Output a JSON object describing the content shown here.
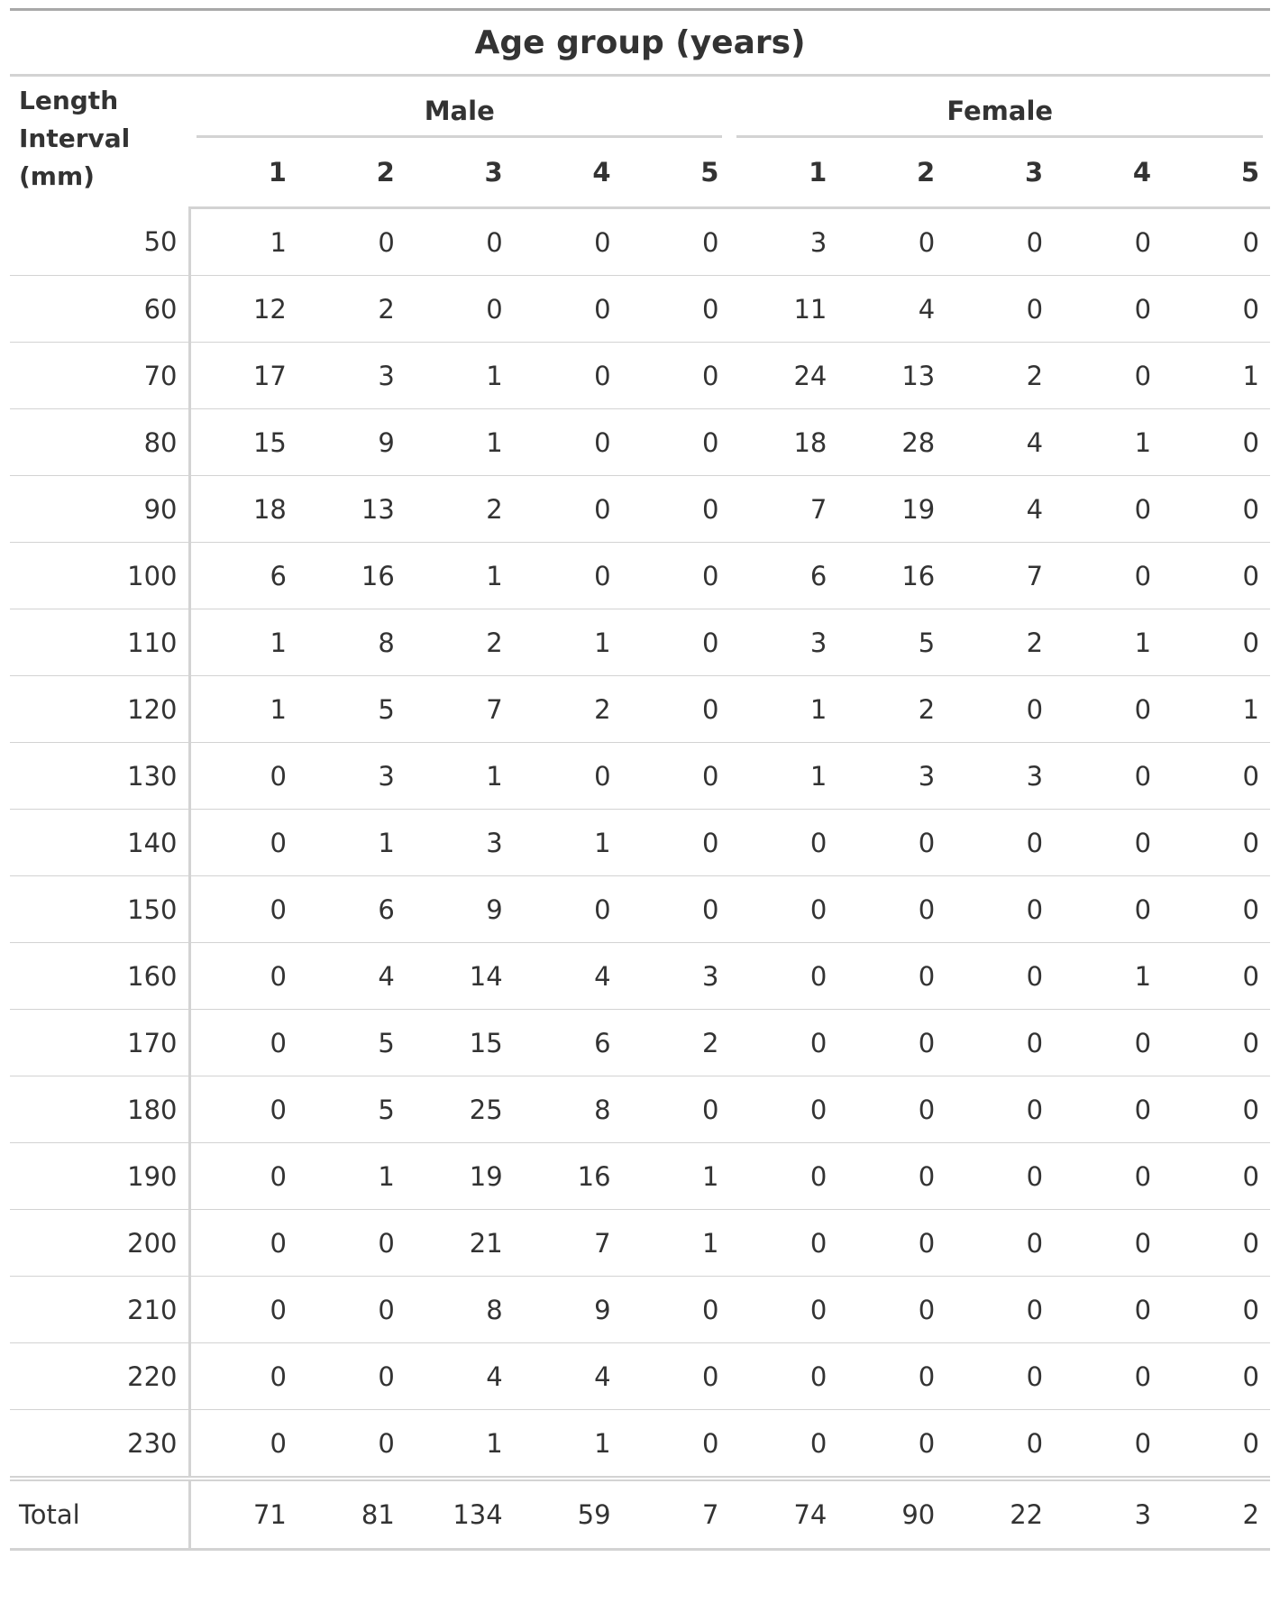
{
  "table": {
    "title": "Age group (years)",
    "stub_header": [
      "Length",
      "Interval",
      "(mm)"
    ],
    "groups": [
      {
        "label": "Male",
        "columns": [
          "1",
          "2",
          "3",
          "4",
          "5"
        ]
      },
      {
        "label": "Female",
        "columns": [
          "1",
          "2",
          "3",
          "4",
          "5"
        ]
      }
    ],
    "rows": [
      {
        "label": "50",
        "values": [
          "1",
          "0",
          "0",
          "0",
          "0",
          "3",
          "0",
          "0",
          "0",
          "0"
        ]
      },
      {
        "label": "60",
        "values": [
          "12",
          "2",
          "0",
          "0",
          "0",
          "11",
          "4",
          "0",
          "0",
          "0"
        ]
      },
      {
        "label": "70",
        "values": [
          "17",
          "3",
          "1",
          "0",
          "0",
          "24",
          "13",
          "2",
          "0",
          "1"
        ]
      },
      {
        "label": "80",
        "values": [
          "15",
          "9",
          "1",
          "0",
          "0",
          "18",
          "28",
          "4",
          "1",
          "0"
        ]
      },
      {
        "label": "90",
        "values": [
          "18",
          "13",
          "2",
          "0",
          "0",
          "7",
          "19",
          "4",
          "0",
          "0"
        ]
      },
      {
        "label": "100",
        "values": [
          "6",
          "16",
          "1",
          "0",
          "0",
          "6",
          "16",
          "7",
          "0",
          "0"
        ]
      },
      {
        "label": "110",
        "values": [
          "1",
          "8",
          "2",
          "1",
          "0",
          "3",
          "5",
          "2",
          "1",
          "0"
        ]
      },
      {
        "label": "120",
        "values": [
          "1",
          "5",
          "7",
          "2",
          "0",
          "1",
          "2",
          "0",
          "0",
          "1"
        ]
      },
      {
        "label": "130",
        "values": [
          "0",
          "3",
          "1",
          "0",
          "0",
          "1",
          "3",
          "3",
          "0",
          "0"
        ]
      },
      {
        "label": "140",
        "values": [
          "0",
          "1",
          "3",
          "1",
          "0",
          "0",
          "0",
          "0",
          "0",
          "0"
        ]
      },
      {
        "label": "150",
        "values": [
          "0",
          "6",
          "9",
          "0",
          "0",
          "0",
          "0",
          "0",
          "0",
          "0"
        ]
      },
      {
        "label": "160",
        "values": [
          "0",
          "4",
          "14",
          "4",
          "3",
          "0",
          "0",
          "0",
          "1",
          "0"
        ]
      },
      {
        "label": "170",
        "values": [
          "0",
          "5",
          "15",
          "6",
          "2",
          "0",
          "0",
          "0",
          "0",
          "0"
        ]
      },
      {
        "label": "180",
        "values": [
          "0",
          "5",
          "25",
          "8",
          "0",
          "0",
          "0",
          "0",
          "0",
          "0"
        ]
      },
      {
        "label": "190",
        "values": [
          "0",
          "1",
          "19",
          "16",
          "1",
          "0",
          "0",
          "0",
          "0",
          "0"
        ]
      },
      {
        "label": "200",
        "values": [
          "0",
          "0",
          "21",
          "7",
          "1",
          "0",
          "0",
          "0",
          "0",
          "0"
        ]
      },
      {
        "label": "210",
        "values": [
          "0",
          "0",
          "8",
          "9",
          "0",
          "0",
          "0",
          "0",
          "0",
          "0"
        ]
      },
      {
        "label": "220",
        "values": [
          "0",
          "0",
          "4",
          "4",
          "0",
          "0",
          "0",
          "0",
          "0",
          "0"
        ]
      },
      {
        "label": "230",
        "values": [
          "0",
          "0",
          "1",
          "1",
          "0",
          "0",
          "0",
          "0",
          "0",
          "0"
        ]
      }
    ],
    "total": {
      "label": "Total",
      "values": [
        "71",
        "81",
        "134",
        "59",
        "7",
        "74",
        "90",
        "22",
        "3",
        "2"
      ]
    }
  }
}
